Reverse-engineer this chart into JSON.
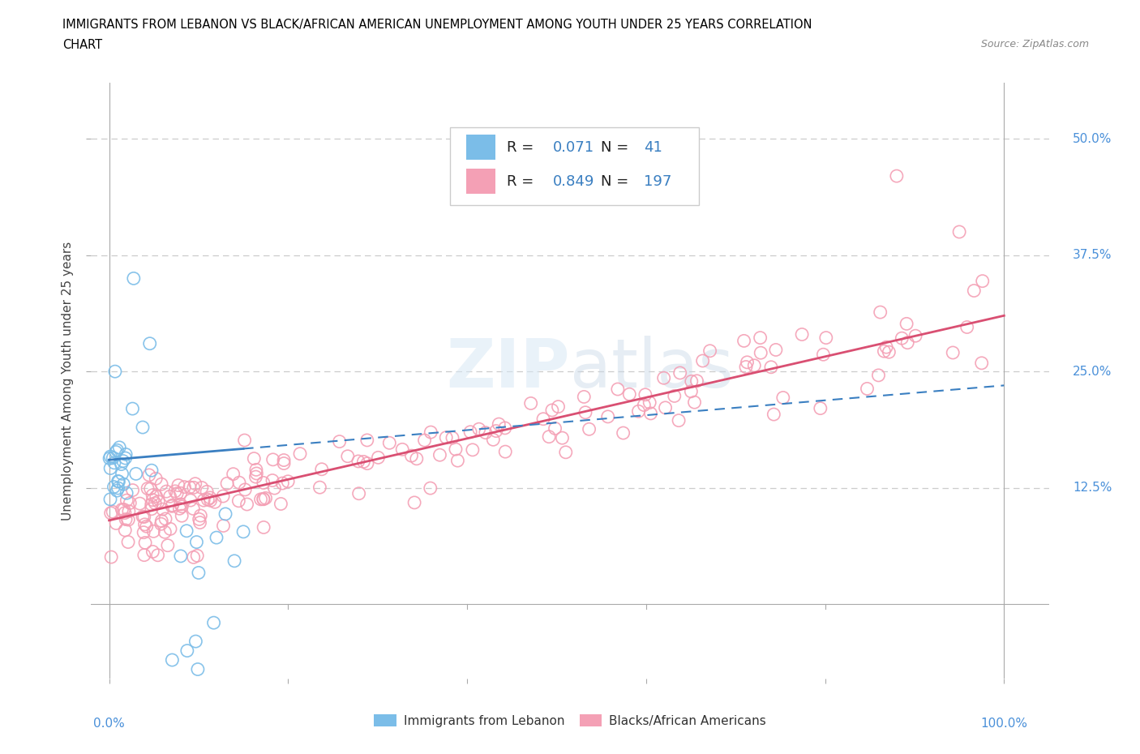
{
  "title_line1": "IMMIGRANTS FROM LEBANON VS BLACK/AFRICAN AMERICAN UNEMPLOYMENT AMONG YOUTH UNDER 25 YEARS CORRELATION",
  "title_line2": "CHART",
  "source": "Source: ZipAtlas.com",
  "ylabel": "Unemployment Among Youth under 25 years",
  "xlim": [
    -0.02,
    1.05
  ],
  "ylim": [
    -0.08,
    0.56
  ],
  "yticks": [
    0.125,
    0.25,
    0.375,
    0.5
  ],
  "ytick_labels": [
    "12.5%",
    "25.0%",
    "37.5%",
    "50.0%"
  ],
  "xticks": [
    0.0,
    0.2,
    0.4,
    0.6,
    0.8,
    1.0
  ],
  "blue_R": 0.071,
  "blue_N": 41,
  "pink_R": 0.849,
  "pink_N": 197,
  "blue_color": "#7bbde8",
  "pink_color": "#f4a0b5",
  "trend_blue_color": "#3a7fc1",
  "trend_pink_color": "#d94f72",
  "watermark": "ZIPatlas",
  "legend_label_blue": "Immigrants from Lebanon",
  "legend_label_pink": "Blacks/African Americans",
  "background_color": "#ffffff",
  "grid_color": "#cccccc",
  "title_color": "#000000",
  "label_color": "#4a90d9",
  "legend_R_color": "#1a1a1a",
  "legend_val_color": "#3a7fc1"
}
